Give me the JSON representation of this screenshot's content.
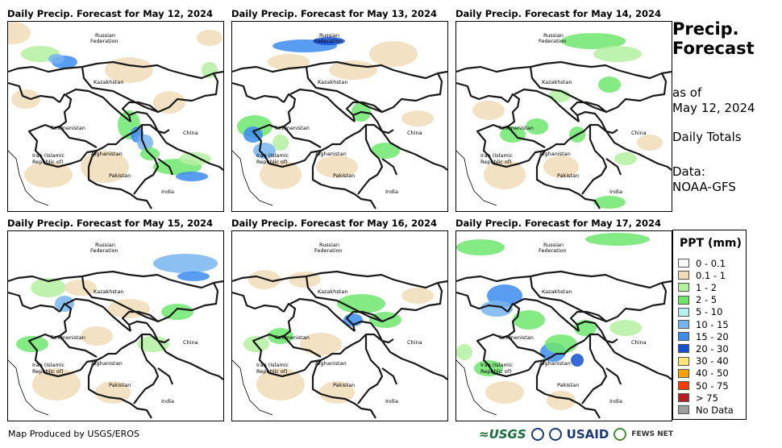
{
  "panels": [
    {
      "title": "Daily Precip. Forecast for May 12, 2024"
    },
    {
      "title": "Daily Precip. Forecast for May 13, 2024"
    },
    {
      "title": "Daily Precip. Forecast for May 14, 2024"
    },
    {
      "title": "Daily Precip. Forecast for May 15, 2024"
    },
    {
      "title": "Daily Precip. Forecast for May 16, 2024"
    },
    {
      "title": "Daily Precip. Forecast for May 17, 2024"
    }
  ],
  "map_labels": {
    "russia_1": "Russian",
    "russia_2": "Federation",
    "kazakhstan": "Kazakhstan",
    "turkmenistan": "Turkmenistan",
    "iran_1": "Iran  (Islamic",
    "iran_2": "Republic of)",
    "afghanistan": "Afghanistan",
    "pakistan": "Pakistan",
    "india": "India",
    "china": "China"
  },
  "sidebar": {
    "title_1": "Precip.",
    "title_2": "Forecast",
    "asof_1": "as of",
    "asof_2": "May 12, 2024",
    "totals": "Daily Totals",
    "data_1": "Data:",
    "data_2": "NOAA-GFS"
  },
  "legend": {
    "title": "PPT (mm)",
    "items": [
      {
        "label": "0 - 0.1",
        "color": "#ffffff"
      },
      {
        "label": "0.1 - 1",
        "color": "#f0dcb8"
      },
      {
        "label": "1 - 2",
        "color": "#b4f0a0"
      },
      {
        "label": "2 - 5",
        "color": "#6ee66e"
      },
      {
        "label": "5 - 10",
        "color": "#b4f0f0"
      },
      {
        "label": "10 - 15",
        "color": "#78b4f0"
      },
      {
        "label": "15 - 20",
        "color": "#3c8cf0"
      },
      {
        "label": "20 - 30",
        "color": "#1450d2"
      },
      {
        "label": "30 - 40",
        "color": "#ffe678"
      },
      {
        "label": "40 - 50",
        "color": "#ffa000"
      },
      {
        "label": "50 - 75",
        "color": "#ff3c00"
      },
      {
        "label": "> 75",
        "color": "#b41e1e"
      },
      {
        "label": "No Data",
        "color": "#a0a0a0"
      }
    ]
  },
  "footer": {
    "credit": "Map Produced by USGS/EROS"
  },
  "logos": {
    "usgs": "≈USGS",
    "usaid": "USAID",
    "fews": "FEWS NET"
  }
}
